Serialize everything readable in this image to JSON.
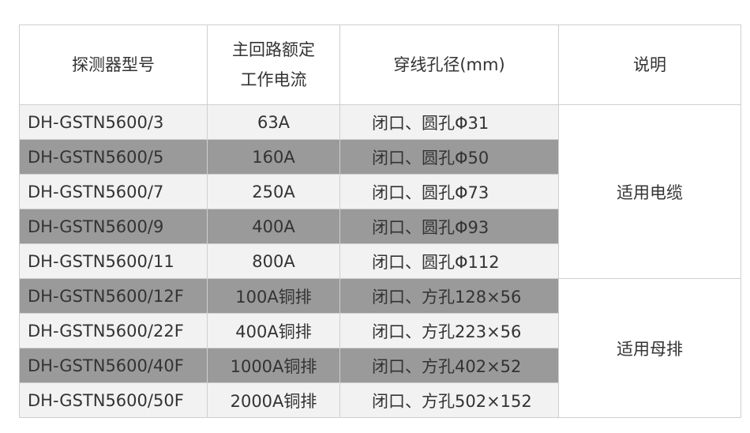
{
  "headers": [
    "探测器型号",
    "主回路额定",
    "工作电流",
    "穿线孔径(mm)",
    "说明"
  ],
  "rows": [
    {
      "model": "DH-GSTN5600/3",
      "current": "63A",
      "hole": "闭口、圆孔Φ31",
      "shade": "light"
    },
    {
      "model": "DH-GSTN5600/5",
      "current": "160A",
      "hole": "闭口、圆孔Φ50",
      "shade": "dark"
    },
    {
      "model": "DH-GSTN5600/7",
      "current": "250A",
      "hole": "闭口、圆孔Φ73",
      "shade": "light"
    },
    {
      "model": "DH-GSTN5600/9",
      "current": "400A",
      "hole": "闭口、圆孔Φ93",
      "shade": "dark"
    },
    {
      "model": "DH-GSTN5600/11",
      "current": "800A",
      "hole": "闭口、圆孔Φ112",
      "shade": "light"
    },
    {
      "model": "DH-GSTN5600/12F",
      "current": "100A铜排",
      "hole": "闭口、方孔128×56",
      "shade": "dark"
    },
    {
      "model": "DH-GSTN5600/22F",
      "current": "400A铜排",
      "hole": "闭口、方孔223×56",
      "shade": "light"
    },
    {
      "model": "DH-GSTN5600/40F",
      "current": "1000A铜排",
      "hole": "闭口、方孔402×52",
      "shade": "dark"
    },
    {
      "model": "DH-GSTN5600/50F",
      "current": "2000A铜排",
      "hole": "闭口、方孔502×152",
      "shade": "light"
    }
  ],
  "notes": [
    "适用电缆",
    "适用母排"
  ],
  "colors": {
    "light_row": "#f2f2f2",
    "dark_row": "#9a9a9a",
    "text": "#333333",
    "border": "#cfcfcf"
  }
}
